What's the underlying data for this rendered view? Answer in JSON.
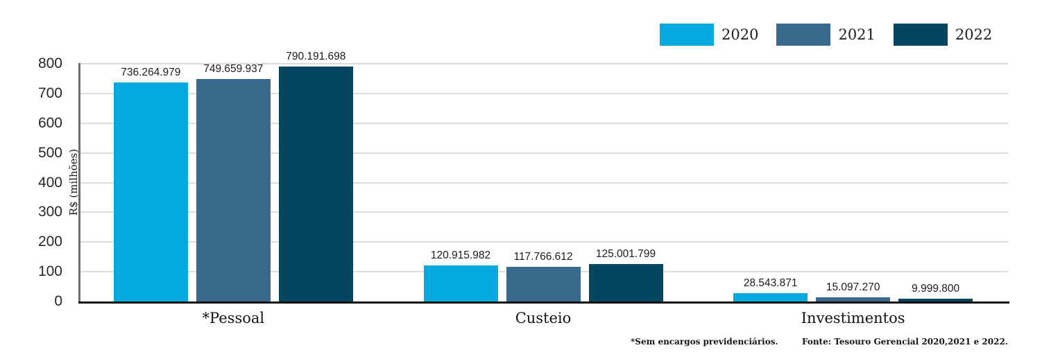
{
  "chart_data": {
    "type": "bar",
    "title": "",
    "xlabel": "",
    "ylabel": "R$ (milhões)",
    "unit": "R$",
    "value_divisor": 1000000,
    "categories": [
      "*Pessoal",
      "Custeio",
      "Investimentos"
    ],
    "series": [
      {
        "name": "2020",
        "color": "#04A9DE",
        "values": [
          736264979,
          120915982,
          28543871
        ],
        "labels": [
          "736.264.979",
          "120.915.982",
          "28.543.871"
        ]
      },
      {
        "name": "2021",
        "color": "#376A8D",
        "values": [
          749659937,
          117766612,
          15097270
        ],
        "labels": [
          "749.659.937",
          "117.766.612",
          "15.097.270"
        ]
      },
      {
        "name": "2022",
        "color": "#04465F",
        "values": [
          790191698,
          125001799,
          9999800
        ],
        "labels": [
          "790.191.698",
          "125.001.799",
          "9.999.800"
        ]
      }
    ],
    "ylim": [
      0,
      800
    ],
    "yticks": [
      0,
      100,
      200,
      300,
      400,
      500,
      600,
      700,
      800
    ],
    "grid": true,
    "legend_position": "top-right"
  },
  "footnotes": {
    "left": "*Sem encargos previdenciários.",
    "right": "Fonte:  Tesouro Gerencial 2020,2021 e 2022."
  }
}
